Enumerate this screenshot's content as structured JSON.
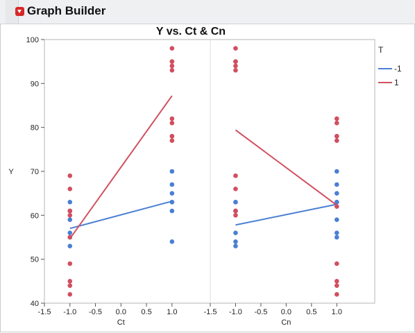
{
  "window": {
    "title": "Graph Builder",
    "toggle_icon": "disclosure-triangle-icon"
  },
  "colors": {
    "series_neg1": "#4a7fd4",
    "series_pos1": "#d14f5f"
  },
  "chart_data": {
    "type": "scatter",
    "title": "Y vs. Ct & Cn",
    "ylabel": "Y",
    "ylim": [
      40,
      100
    ],
    "yticks": [
      40,
      50,
      60,
      70,
      80,
      90,
      100
    ],
    "xticks": [
      -1.5,
      -1.0,
      -0.5,
      0.0,
      0.5,
      1.0
    ],
    "grid": false,
    "legend": {
      "title": "T",
      "placement": "right",
      "entries": [
        "-1",
        "1"
      ]
    },
    "panels": [
      {
        "xlabel": "Ct",
        "xlim": [
          -1.5,
          1.75
        ],
        "series": [
          {
            "name": "-1",
            "points_x": [
              -1,
              -1,
              -1,
              -1,
              -1,
              -1,
              -1,
              1,
              1,
              1,
              1,
              1,
              1,
              1
            ],
            "points_y": [
              53,
              55,
              56,
              59,
              61,
              61,
              63,
              54,
              61,
              63,
              63,
              65,
              67,
              70
            ],
            "line_x": [
              -1,
              1
            ],
            "line_y": [
              57,
              63.2
            ]
          },
          {
            "name": "1",
            "points_x": [
              -1,
              -1,
              -1,
              -1,
              -1,
              -1,
              -1,
              -1,
              -1,
              -1,
              1,
              1,
              1,
              1,
              1,
              1,
              1,
              1,
              1,
              1
            ],
            "points_y": [
              42,
              44,
              45,
              49,
              55,
              60,
              61,
              61,
              66,
              69,
              77,
              78,
              78,
              81,
              82,
              93,
              94,
              95,
              95,
              98
            ],
            "line_x": [
              -1,
              1
            ],
            "line_y": [
              54.7,
              87.2
            ]
          }
        ]
      },
      {
        "xlabel": "Cn",
        "xlim": [
          -1.5,
          1.75
        ],
        "series": [
          {
            "name": "-1",
            "points_x": [
              -1,
              -1,
              -1,
              -1,
              -1,
              -1,
              -1,
              1,
              1,
              1,
              1,
              1,
              1,
              1,
              1
            ],
            "points_y": [
              53,
              54,
              56,
              61,
              61,
              63,
              63,
              55,
              56,
              59,
              63,
              63,
              65,
              67,
              70
            ],
            "line_x": [
              -1,
              1
            ],
            "line_y": [
              57.8,
              62.5
            ]
          },
          {
            "name": "1",
            "points_x": [
              -1,
              -1,
              -1,
              -1,
              -1,
              -1,
              -1,
              -1,
              -1,
              -1,
              1,
              1,
              1,
              1,
              1,
              1,
              1,
              1,
              1,
              1
            ],
            "points_y": [
              60,
              61,
              66,
              69,
              93,
              94,
              95,
              95,
              98,
              61,
              42,
              44,
              45,
              49,
              62,
              77,
              78,
              78,
              81,
              82
            ],
            "line_x": [
              -1,
              1
            ],
            "line_y": [
              79.4,
              62.3
            ]
          }
        ]
      }
    ]
  }
}
